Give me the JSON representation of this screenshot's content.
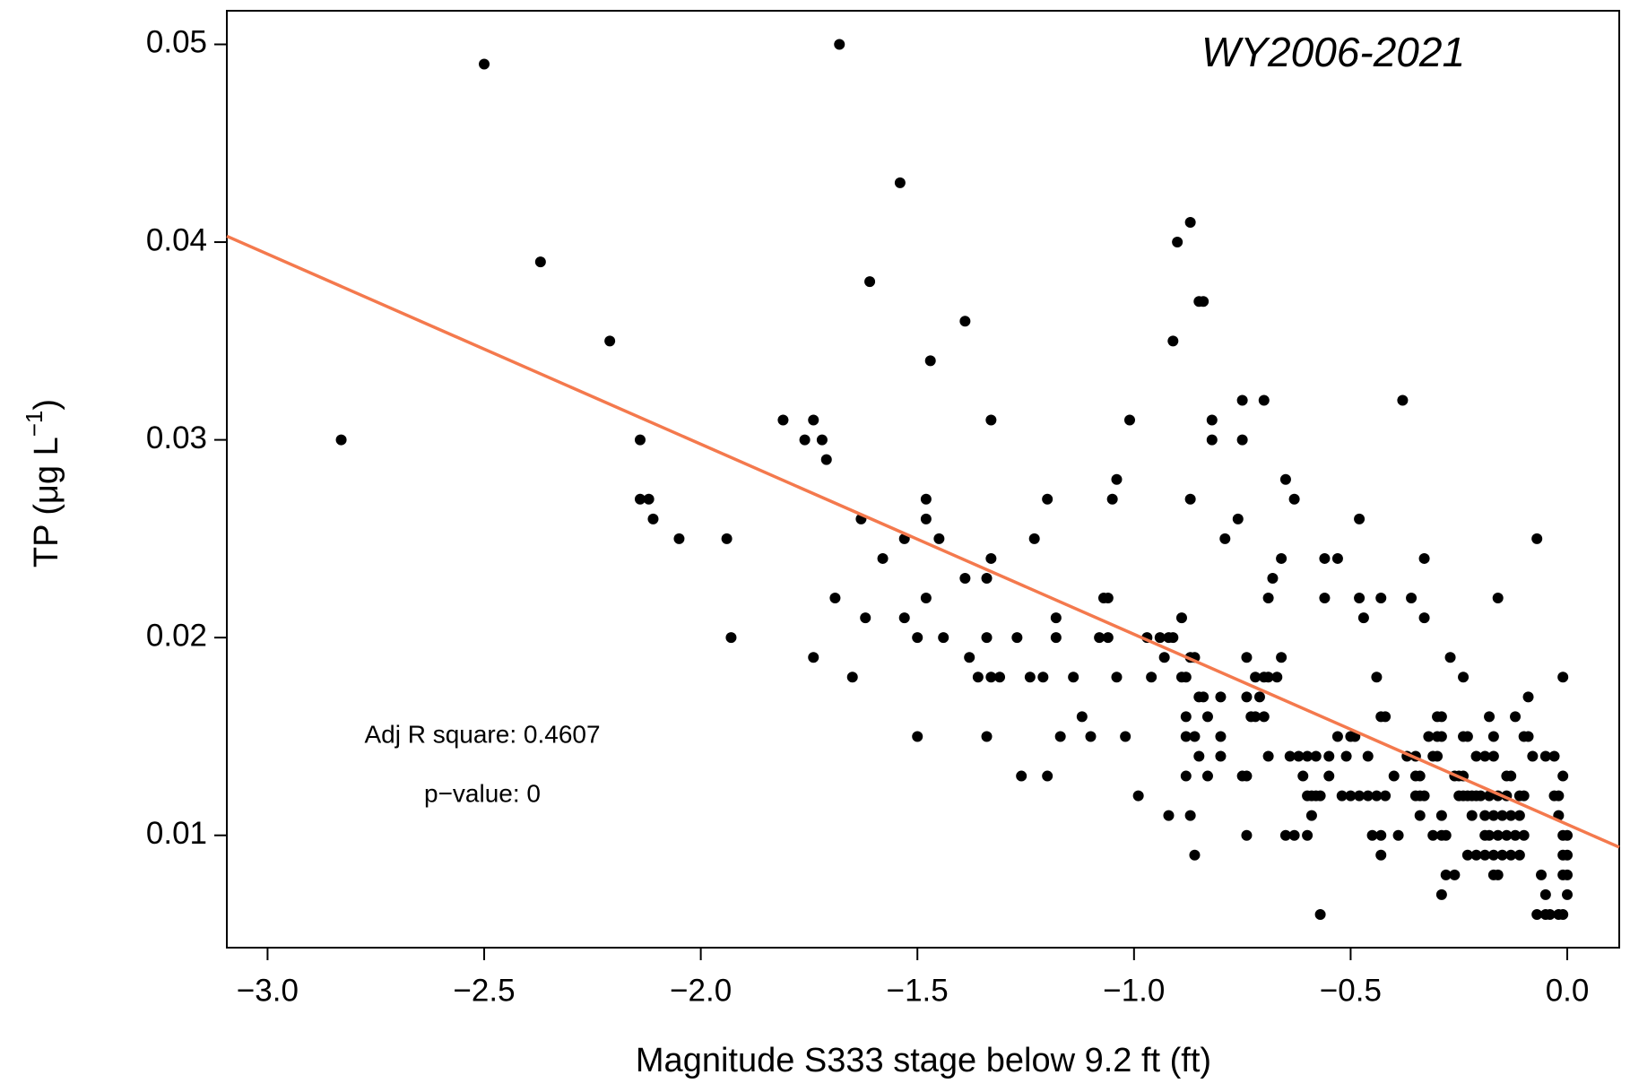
{
  "chart_data": {
    "type": "scatter",
    "title": "WY2006-2021",
    "xlabel": "Magnitude S333 stage below 9.2 ft (ft)",
    "ylabel": {
      "main": "TP (μg L",
      "sup": "−1",
      "close": ")"
    },
    "annotations": [
      "Adj R square: 0.4607",
      "p−value: 0"
    ],
    "xlim": [
      -3.094,
      0.12
    ],
    "ylim": [
      0.00432,
      0.0517
    ],
    "xticks": [
      {
        "value": -3,
        "label": "−3.0"
      },
      {
        "value": -2.5,
        "label": "−2.5"
      },
      {
        "value": -2,
        "label": "−2.0"
      },
      {
        "value": -1.5,
        "label": "−1.5"
      },
      {
        "value": -1,
        "label": "−1.0"
      },
      {
        "value": -0.5,
        "label": "−0.5"
      },
      {
        "value": 0,
        "label": "0.0"
      }
    ],
    "yticks": [
      0.01,
      0.02,
      0.03,
      0.04,
      0.05
    ],
    "grid": false,
    "fit": {
      "x": [
        -3.094,
        0.12
      ],
      "values": [
        0.0403,
        0.0094
      ],
      "color": "#f4794d"
    },
    "series": [
      {
        "color": "#000000",
        "x": [
          -2.83,
          -2.5,
          -2.37,
          -2.21,
          -2.14,
          -2.14,
          -2.12,
          -2.11,
          -2.05,
          -1.94,
          -1.93,
          -1.81,
          -1.76,
          -1.74,
          -1.72,
          -1.71,
          -1.74,
          -1.68,
          -1.69,
          -1.65,
          -1.63,
          -1.62,
          -1.61,
          -1.58,
          -1.54,
          -1.53,
          -1.53,
          -1.5,
          -1.5,
          -1.48,
          -1.48,
          -1.48,
          -1.47,
          -1.45,
          -1.44,
          -1.39,
          -1.39,
          -1.38,
          -1.36,
          -1.34,
          -1.34,
          -1.34,
          -1.33,
          -1.33,
          -1.33,
          -1.31,
          -1.27,
          -1.26,
          -1.24,
          -1.23,
          -1.21,
          -1.2,
          -1.2,
          -1.18,
          -1.18,
          -1.17,
          -1.14,
          -1.12,
          -1.1,
          -1.08,
          -1.07,
          -1.06,
          -1.06,
          -1.05,
          -1.04,
          -1.04,
          -1.02,
          -1.01,
          -0.99,
          -0.97,
          -0.96,
          -0.94,
          -0.92,
          -0.91,
          -0.93,
          -0.92,
          -0.91,
          -0.9,
          -0.89,
          -0.89,
          -0.88,
          -0.88,
          -0.88,
          -0.88,
          -0.87,
          -0.87,
          -0.87,
          -0.86,
          -0.87,
          -0.86,
          -0.86,
          -0.85,
          -0.85,
          -0.85,
          -0.84,
          -0.84,
          -0.83,
          -0.83,
          -0.82,
          -0.82,
          -0.8,
          -0.8,
          -0.8,
          -0.79,
          -0.76,
          -0.75,
          -0.75,
          -0.75,
          -0.74,
          -0.74,
          -0.74,
          -0.74,
          -0.73,
          -0.72,
          -0.7,
          -0.72,
          -0.7,
          -0.69,
          -0.71,
          -0.7,
          -0.69,
          -0.69,
          -0.68,
          -0.67,
          -0.66,
          -0.66,
          -0.65,
          -0.64,
          -0.62,
          -0.6,
          -0.58,
          -0.55,
          -0.65,
          -0.63,
          -0.6,
          -0.63,
          -0.61,
          -0.6,
          -0.59,
          -0.58,
          -0.57,
          -0.59,
          -0.57,
          -0.56,
          -0.53,
          -0.56,
          -0.55,
          -0.53,
          -0.51,
          -0.5,
          -0.49,
          -0.52,
          -0.5,
          -0.48,
          -0.46,
          -0.44,
          -0.42,
          -0.48,
          -0.48,
          -0.47,
          -0.46,
          -0.45,
          -0.43,
          -0.44,
          -0.43,
          -0.43,
          -0.42,
          -0.43,
          -0.4,
          -0.39,
          -0.38,
          -0.37,
          -0.35,
          -0.36,
          -0.35,
          -0.34,
          -0.33,
          -0.35,
          -0.34,
          -0.34,
          -0.33,
          -0.33,
          -0.32,
          -0.3,
          -0.29,
          -0.31,
          -0.3,
          -0.31,
          -0.29,
          -0.28,
          -0.3,
          -0.29,
          -0.29,
          -0.29,
          -0.28,
          -0.26,
          -0.27,
          -0.26,
          -0.25,
          -0.24,
          -0.25,
          -0.24,
          -0.23,
          -0.22,
          -0.21,
          -0.2,
          -0.18,
          -0.16,
          -0.14,
          -0.11,
          -0.1,
          -0.24,
          -0.24,
          -0.23,
          -0.23,
          -0.21,
          -0.19,
          -0.17,
          -0.15,
          -0.13,
          -0.11,
          -0.22,
          -0.19,
          -0.17,
          -0.15,
          -0.13,
          -0.11,
          -0.21,
          -0.19,
          -0.17,
          -0.19,
          -0.18,
          -0.16,
          -0.14,
          -0.12,
          -0.1,
          -0.18,
          -0.17,
          -0.17,
          -0.16,
          -0.16,
          -0.14,
          -0.13,
          -0.12,
          -0.1,
          -0.09,
          -0.09,
          -0.08,
          -0.07,
          -0.07,
          -0.05,
          -0.04,
          -0.06,
          -0.05,
          -0.05,
          -0.03,
          -0.03,
          -0.02,
          -0.02,
          -0.01,
          -0.01,
          -0.01,
          0.0,
          -0.01,
          0.0,
          -0.01,
          0.0,
          0.0,
          -0.02,
          -0.01
        ],
        "values": [
          0.03,
          0.049,
          0.039,
          0.035,
          0.03,
          0.027,
          0.027,
          0.026,
          0.025,
          0.025,
          0.02,
          0.031,
          0.03,
          0.031,
          0.03,
          0.029,
          0.019,
          0.05,
          0.022,
          0.018,
          0.026,
          0.021,
          0.038,
          0.024,
          0.043,
          0.025,
          0.021,
          0.02,
          0.015,
          0.027,
          0.026,
          0.022,
          0.034,
          0.025,
          0.02,
          0.036,
          0.023,
          0.019,
          0.018,
          0.023,
          0.02,
          0.015,
          0.018,
          0.031,
          0.024,
          0.018,
          0.02,
          0.013,
          0.018,
          0.025,
          0.018,
          0.013,
          0.027,
          0.021,
          0.02,
          0.015,
          0.018,
          0.016,
          0.015,
          0.02,
          0.022,
          0.022,
          0.02,
          0.027,
          0.028,
          0.018,
          0.015,
          0.031,
          0.012,
          0.02,
          0.018,
          0.02,
          0.02,
          0.02,
          0.019,
          0.011,
          0.035,
          0.04,
          0.018,
          0.021,
          0.018,
          0.016,
          0.015,
          0.013,
          0.041,
          0.027,
          0.011,
          0.009,
          0.019,
          0.019,
          0.015,
          0.017,
          0.014,
          0.037,
          0.037,
          0.017,
          0.013,
          0.016,
          0.031,
          0.03,
          0.017,
          0.015,
          0.014,
          0.025,
          0.026,
          0.032,
          0.03,
          0.013,
          0.013,
          0.019,
          0.017,
          0.01,
          0.016,
          0.016,
          0.016,
          0.018,
          0.018,
          0.018,
          0.017,
          0.032,
          0.022,
          0.014,
          0.023,
          0.018,
          0.019,
          0.024,
          0.028,
          0.014,
          0.014,
          0.014,
          0.014,
          0.014,
          0.01,
          0.01,
          0.01,
          0.027,
          0.013,
          0.012,
          0.012,
          0.012,
          0.012,
          0.011,
          0.006,
          0.024,
          0.024,
          0.022,
          0.013,
          0.015,
          0.014,
          0.015,
          0.015,
          0.012,
          0.012,
          0.012,
          0.012,
          0.012,
          0.012,
          0.026,
          0.022,
          0.021,
          0.014,
          0.01,
          0.01,
          0.018,
          0.022,
          0.016,
          0.016,
          0.009,
          0.013,
          0.01,
          0.032,
          0.014,
          0.014,
          0.022,
          0.012,
          0.012,
          0.012,
          0.013,
          0.013,
          0.011,
          0.024,
          0.021,
          0.015,
          0.015,
          0.015,
          0.014,
          0.014,
          0.01,
          0.01,
          0.01,
          0.016,
          0.016,
          0.007,
          0.011,
          0.008,
          0.008,
          0.019,
          0.013,
          0.013,
          0.013,
          0.012,
          0.012,
          0.012,
          0.012,
          0.012,
          0.012,
          0.012,
          0.012,
          0.012,
          0.012,
          0.012,
          0.018,
          0.015,
          0.015,
          0.009,
          0.009,
          0.009,
          0.009,
          0.009,
          0.009,
          0.009,
          0.011,
          0.011,
          0.011,
          0.011,
          0.011,
          0.011,
          0.014,
          0.014,
          0.014,
          0.01,
          0.01,
          0.01,
          0.01,
          0.01,
          0.01,
          0.016,
          0.015,
          0.008,
          0.008,
          0.022,
          0.013,
          0.013,
          0.016,
          0.015,
          0.015,
          0.017,
          0.014,
          0.025,
          0.006,
          0.006,
          0.006,
          0.008,
          0.007,
          0.014,
          0.014,
          0.012,
          0.012,
          0.011,
          0.018,
          0.013,
          0.01,
          0.01,
          0.009,
          0.009,
          0.008,
          0.008,
          0.007,
          0.006,
          0.006
        ]
      }
    ]
  }
}
